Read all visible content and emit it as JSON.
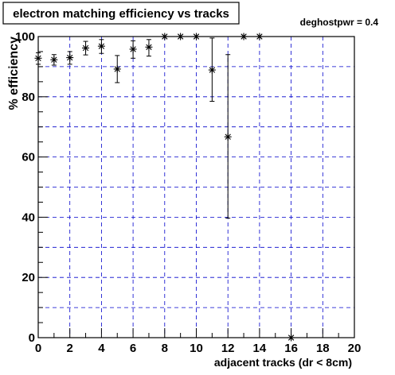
{
  "chart_data": {
    "type": "scatter",
    "title": "electron matching efficiency vs tracks",
    "annotation": "deghostpwr = 0.4",
    "xlabel": "adjacent tracks (dr < 8cm)",
    "ylabel": "% efficiency",
    "xlim": [
      0,
      20
    ],
    "ylim": [
      0,
      100
    ],
    "x_ticks": [
      0,
      2,
      4,
      6,
      8,
      10,
      12,
      14,
      16,
      18,
      20
    ],
    "y_ticks": [
      0,
      20,
      40,
      60,
      80,
      100
    ],
    "grid": true,
    "marker": "asterisk",
    "colors": {
      "grid": "#0000cc",
      "marker": "#000000",
      "frame": "#000000"
    },
    "points": [
      {
        "x": 0,
        "y": 92.8,
        "err_lo": 2.0,
        "err_hi": 1.8
      },
      {
        "x": 1,
        "y": 92.3,
        "err_lo": 1.8,
        "err_hi": 1.7
      },
      {
        "x": 2,
        "y": 93.0,
        "err_lo": 2.2,
        "err_hi": 2.0
      },
      {
        "x": 3,
        "y": 96.2,
        "err_lo": 2.3,
        "err_hi": 2.2
      },
      {
        "x": 4,
        "y": 96.8,
        "err_lo": 2.4,
        "err_hi": 2.2
      },
      {
        "x": 5,
        "y": 89.2,
        "err_lo": 4.5,
        "err_hi": 4.5
      },
      {
        "x": 6,
        "y": 95.8,
        "err_lo": 3.0,
        "err_hi": 2.8
      },
      {
        "x": 7,
        "y": 96.5,
        "err_lo": 3.0,
        "err_hi": 2.5
      },
      {
        "x": 8,
        "y": 100,
        "err_lo": 0,
        "err_hi": 0
      },
      {
        "x": 9,
        "y": 100,
        "err_lo": 0,
        "err_hi": 0
      },
      {
        "x": 10,
        "y": 100,
        "err_lo": 0,
        "err_hi": 0
      },
      {
        "x": 11,
        "y": 88.9,
        "err_lo": 10.4,
        "err_hi": 10.6
      },
      {
        "x": 12,
        "y": 66.7,
        "err_lo": 27.0,
        "err_hi": 27.3
      },
      {
        "x": 13,
        "y": 100,
        "err_lo": 0,
        "err_hi": 0
      },
      {
        "x": 14,
        "y": 100,
        "err_lo": 0,
        "err_hi": 0
      },
      {
        "x": 16,
        "y": 0,
        "err_lo": 0,
        "err_hi": 0
      }
    ]
  }
}
